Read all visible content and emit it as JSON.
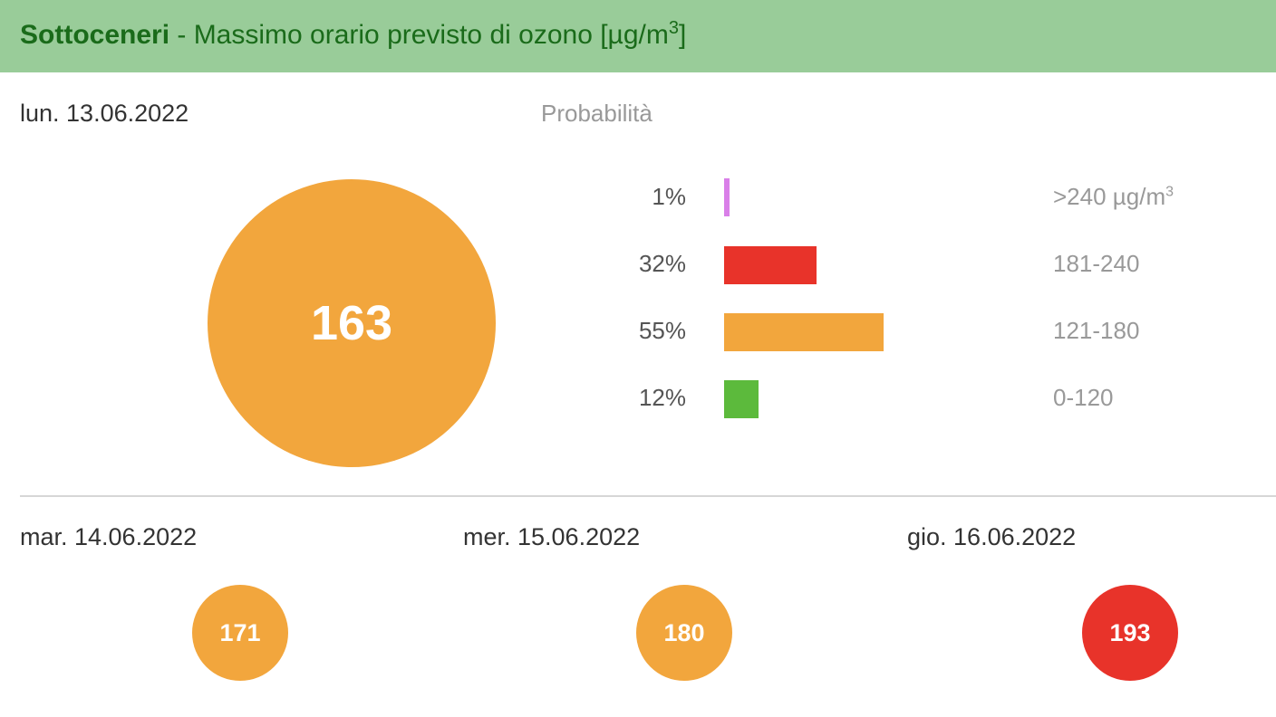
{
  "header": {
    "region": "Sottoceneri",
    "title_prefix": " - Massimo orario previsto di ozono [µg/m",
    "title_sup": "3",
    "title_suffix": "]"
  },
  "today": {
    "date": "lun. 13.06.2022",
    "value": "163",
    "color": "#f2a63d"
  },
  "probability": {
    "title": "Probabilità",
    "rows": [
      {
        "pct": "1%",
        "fraction": 0.01,
        "range": ">240 µg/m",
        "range_sup": "3",
        "color": "#d97fe8"
      },
      {
        "pct": "32%",
        "fraction": 0.32,
        "range": "181-240",
        "range_sup": "",
        "color": "#e8332a"
      },
      {
        "pct": "55%",
        "fraction": 0.55,
        "range": "121-180",
        "range_sup": "",
        "color": "#f2a63d"
      },
      {
        "pct": "12%",
        "fraction": 0.12,
        "range": "0-120",
        "range_sup": "",
        "color": "#5cba3c"
      }
    ]
  },
  "forecast": [
    {
      "date": "mar. 14.06.2022",
      "value": "171",
      "color": "#f2a63d"
    },
    {
      "date": "mer. 15.06.2022",
      "value": "180",
      "color": "#f2a63d"
    },
    {
      "date": "gio. 16.06.2022",
      "value": "193",
      "color": "#e8332a"
    }
  ]
}
